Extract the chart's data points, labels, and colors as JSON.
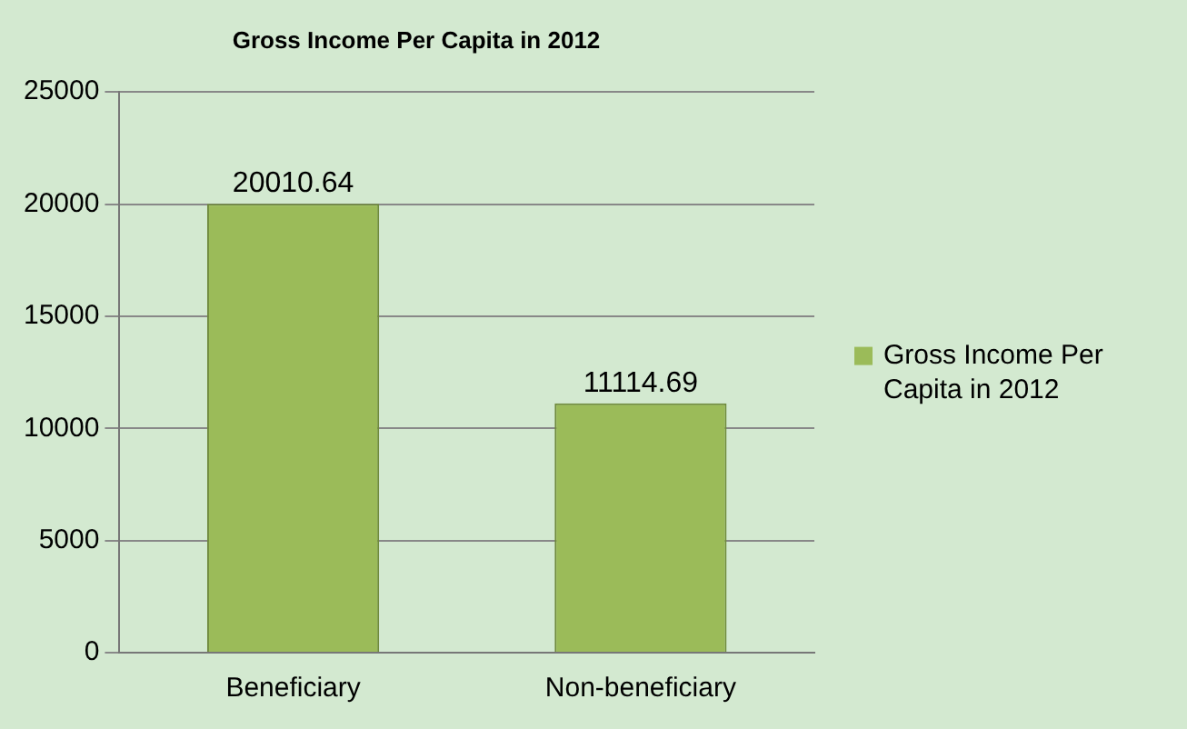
{
  "chart_data": {
    "type": "bar",
    "title": "Gross Income Per Capita in 2012",
    "categories": [
      "Beneficiary",
      "Non-beneficiary"
    ],
    "series": [
      {
        "name": "Gross Income Per Capita in 2012",
        "color": "#9bbb59",
        "values": [
          20010.64,
          11114.69
        ]
      }
    ],
    "ylim": [
      0,
      25000
    ],
    "yticks": [
      0,
      5000,
      10000,
      15000,
      20000,
      25000
    ],
    "grid": "y",
    "legend": "right",
    "data_labels": true
  }
}
